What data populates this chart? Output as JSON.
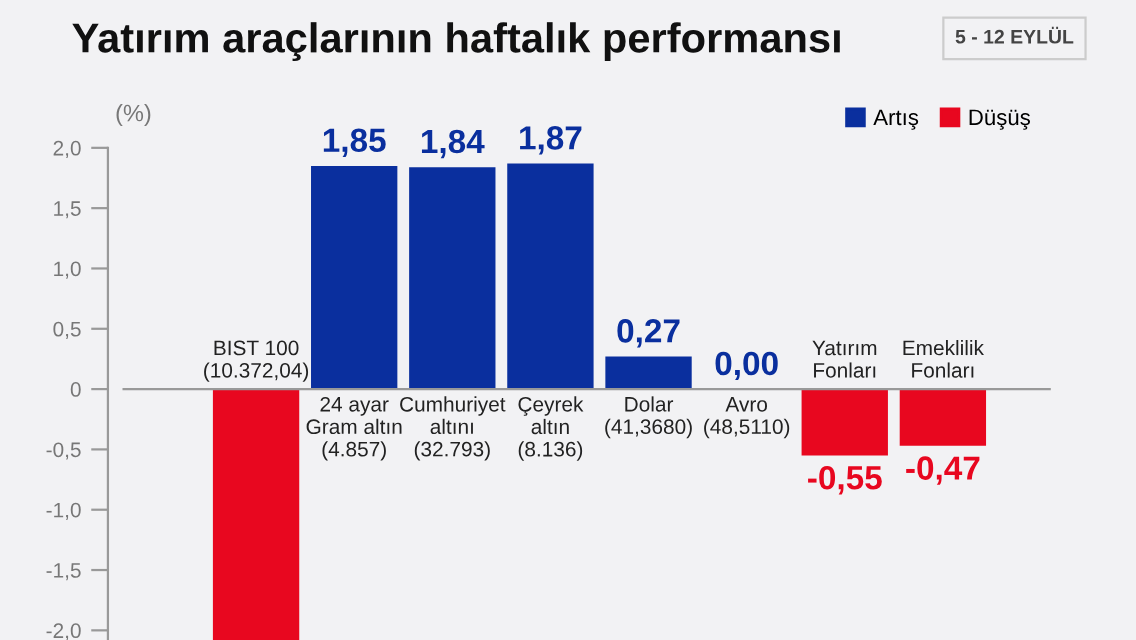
{
  "chart_data": {
    "type": "bar",
    "title": "Yatırım araçlarının haftalık performansı",
    "subtitle": "5 - 12 EYLÜL",
    "ylabel": "(%)",
    "categories": [
      "BIST 100\n(10.372,04)",
      "24 ayar\nGram altın\n(4.857)",
      "Cumhuriyet\naltını\n(32.793)",
      "Çeyrek\naltın\n(8.136)",
      "Dolar\n(41,3680)",
      "Avro\n(48,5110)",
      "Yatırım\nFonları",
      "Emeklilik\nFonları"
    ],
    "series": [
      {
        "name": "Artış",
        "color": "#0a2f9e",
        "values": [
          null,
          1.85,
          1.84,
          1.87,
          0.27,
          0.0,
          null,
          null
        ],
        "value_labels": [
          null,
          "1,85",
          "1,84",
          "1,87",
          "0,27",
          "0,00",
          null,
          null
        ]
      },
      {
        "name": "Düşüş",
        "color": "#e8071f",
        "values": [
          -2.08,
          null,
          null,
          null,
          null,
          null,
          -0.55,
          -0.47
        ],
        "value_labels": [
          null,
          null,
          null,
          null,
          null,
          null,
          "-0,55",
          "-0,47"
        ]
      }
    ],
    "ylim": [
      -2.08,
      2.0
    ],
    "yticks": [
      {
        "value": 2.0,
        "label": "2,0"
      },
      {
        "value": 1.5,
        "label": "1,5"
      },
      {
        "value": 1.0,
        "label": "1,0"
      },
      {
        "value": 0.5,
        "label": "0,5"
      },
      0,
      {
        "value": -0.5,
        "label": "-0,5"
      },
      {
        "value": -1.0,
        "label": "-1,0"
      },
      {
        "value": -1.5,
        "label": "-1,5"
      },
      {
        "value": -2.0,
        "label": "-2,0"
      }
    ],
    "legend": "top right",
    "grid": false
  }
}
